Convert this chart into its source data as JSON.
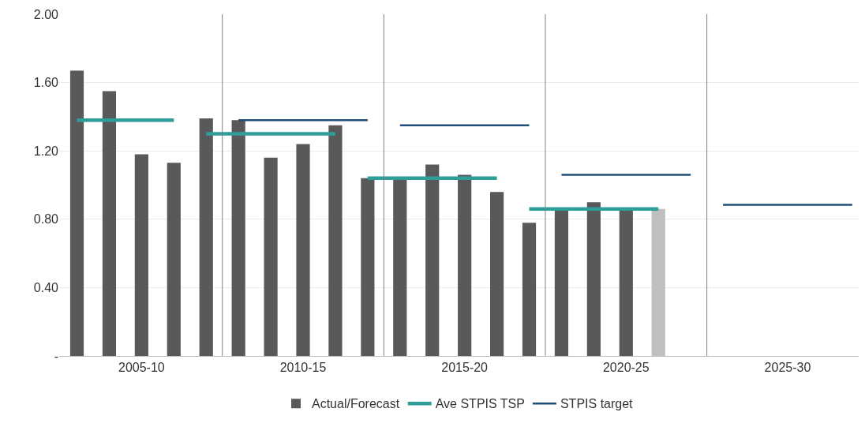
{
  "chart_data": {
    "type": "bar",
    "categories": [
      null,
      null,
      "2005-10",
      null,
      null,
      null,
      null,
      "2010-15",
      null,
      null,
      null,
      null,
      "2015-20",
      null,
      null,
      null,
      null,
      "2020-25",
      null,
      null,
      null,
      null,
      "2025-30",
      null,
      null
    ],
    "ylim": [
      0,
      2
    ],
    "yticks": [
      {
        "value": 0,
        "label": "-"
      },
      {
        "value": 0.4,
        "label": "0.40"
      },
      {
        "value": 0.8,
        "label": "0.80"
      },
      {
        "value": 1.2,
        "label": "1.20"
      },
      {
        "value": 1.6,
        "label": "1.60"
      },
      {
        "value": 2,
        "label": "2.00"
      }
    ],
    "series": [
      {
        "name": "Actual/Forecast",
        "color": "#595959",
        "colors": [
          "#595959",
          "#595959",
          "#595959",
          "#595959",
          "#595959",
          "#595959",
          "#595959",
          "#595959",
          "#595959",
          "#595959",
          "#595959",
          "#595959",
          "#595959",
          "#595959",
          "#595959",
          "#595959",
          "#595959",
          "#595959",
          "#bfbfbf",
          "#595959",
          "#595959",
          "#595959",
          "#595959",
          "#595959",
          "#595959"
        ],
        "values": [
          1.67,
          1.55,
          1.18,
          1.13,
          1.39,
          1.38,
          1.16,
          1.24,
          1.35,
          1.04,
          1.04,
          1.12,
          1.06,
          0.96,
          0.78,
          0.86,
          0.9,
          0.86,
          0.86,
          null,
          null,
          null,
          null,
          null,
          null
        ]
      },
      {
        "name": "Ave STPIS TSP",
        "type": "line",
        "color": "#2e9e9b",
        "values": [
          1.38,
          1.38,
          1.38,
          1.38,
          null,
          null,
          null,
          null,
          null,
          null,
          null,
          null,
          null,
          null,
          null,
          null,
          null,
          null,
          null,
          null,
          null,
          null,
          null,
          null,
          null
        ]
      },
      {
        "type": "line",
        "color": "#2e9e9b",
        "values": [
          null,
          null,
          null,
          null,
          1.3,
          1.3,
          1.3,
          1.3,
          1.3,
          null,
          null,
          null,
          null,
          null,
          null,
          null,
          null,
          null,
          null,
          null,
          null,
          null,
          null,
          null,
          null
        ]
      },
      {
        "type": "line",
        "color": "#2e9e9b",
        "values": [
          null,
          null,
          null,
          null,
          null,
          null,
          null,
          null,
          null,
          1.04,
          1.04,
          1.04,
          1.04,
          1.04,
          null,
          null,
          null,
          null,
          null,
          null,
          null,
          null,
          null,
          null,
          null
        ]
      },
      {
        "type": "line",
        "color": "#2e9e9b",
        "values": [
          null,
          null,
          null,
          null,
          null,
          null,
          null,
          null,
          null,
          null,
          null,
          null,
          null,
          null,
          0.86,
          0.86,
          0.86,
          0.86,
          0.86,
          null,
          null,
          null,
          null,
          null,
          null
        ]
      },
      {
        "name": "STPIS target",
        "type": "line",
        "color": "#1f4e79",
        "values": [
          null,
          null,
          null,
          null,
          null,
          1.38,
          1.38,
          1.38,
          1.38,
          1.38,
          null,
          null,
          null,
          null,
          null,
          null,
          null,
          null,
          null,
          null,
          null,
          null,
          null,
          null,
          null
        ]
      },
      {
        "type": "line",
        "color": "#1f4e79",
        "values": [
          null,
          null,
          null,
          null,
          null,
          null,
          null,
          null,
          null,
          null,
          1.35,
          1.35,
          1.35,
          1.35,
          1.35,
          null,
          null,
          null,
          null,
          null,
          null,
          null,
          null,
          null,
          null
        ]
      },
      {
        "type": "line",
        "color": "#1f4e79",
        "values": [
          null,
          null,
          null,
          null,
          null,
          null,
          null,
          null,
          null,
          null,
          null,
          null,
          null,
          null,
          null,
          1.06,
          1.06,
          1.06,
          1.06,
          1.06,
          null,
          null,
          null,
          null,
          null
        ]
      },
      {
        "type": "line",
        "color": "#1f4e79",
        "values": [
          null,
          null,
          null,
          null,
          null,
          null,
          null,
          null,
          null,
          null,
          null,
          null,
          null,
          null,
          null,
          null,
          null,
          null,
          null,
          null,
          0.885,
          0.885,
          0.885,
          0.885,
          0.885
        ]
      }
    ],
    "grid": "y",
    "legend": "bottom",
    "marker": "none",
    "line_style": "solid"
  }
}
